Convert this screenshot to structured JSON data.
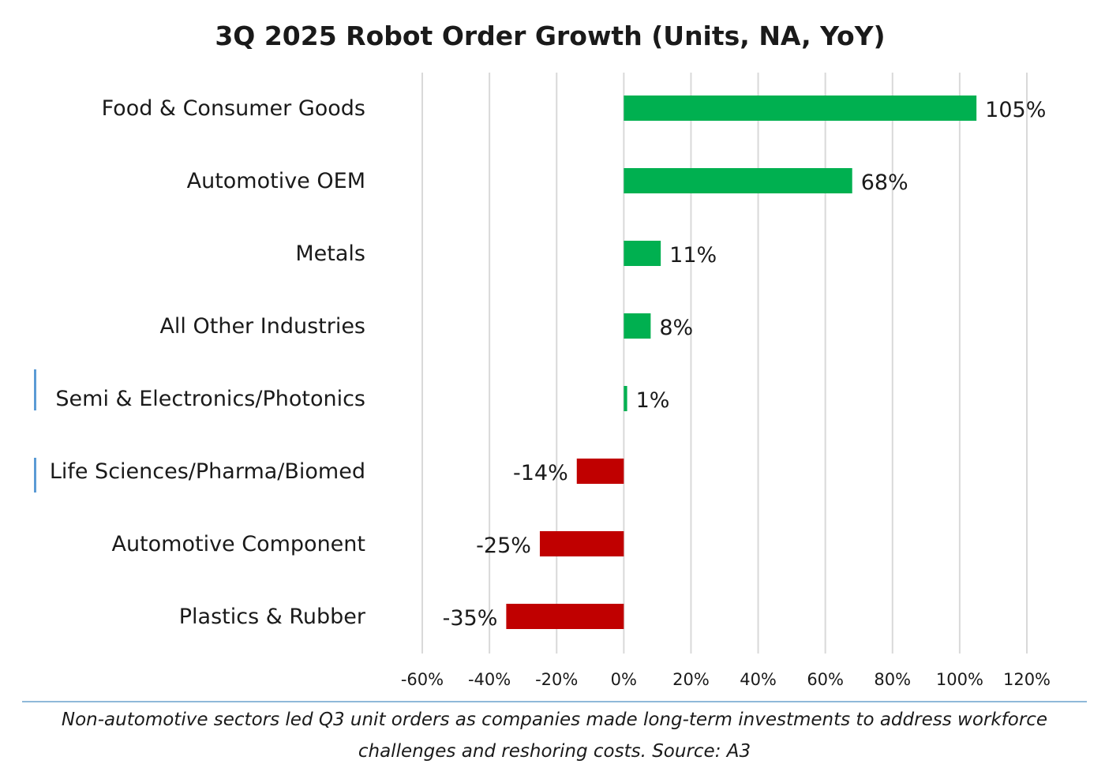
{
  "chart_data": {
    "type": "bar",
    "orientation": "horizontal",
    "title": "3Q 2025 Robot Order Growth (Units, NA, YoY)",
    "categories": [
      "Food & Consumer Goods",
      "Automotive OEM",
      "Metals",
      "All Other Industries",
      "Semi & Electronics/Photonics",
      "Life Sciences/Pharma/Biomed",
      "Automotive Component",
      "Plastics & Rubber"
    ],
    "values": [
      105,
      68,
      11,
      8,
      1,
      -14,
      -25,
      -35
    ],
    "value_labels": [
      "105%",
      "68%",
      "11%",
      "8%",
      "1%",
      "-14%",
      "-25%",
      "-35%"
    ],
    "xlim": [
      -60,
      120
    ],
    "xticks": [
      -60,
      -40,
      -20,
      0,
      20,
      40,
      60,
      80,
      100,
      120
    ],
    "xtick_labels": [
      "-60%",
      "-40%",
      "-20%",
      "0%",
      "20%",
      "40%",
      "60%",
      "80%",
      "100%",
      "120%"
    ],
    "xlabel": "",
    "ylabel": "",
    "grid": "vertical",
    "colors": {
      "positive": "#00b050",
      "negative": "#c00000"
    }
  },
  "caption": "Non-automotive sectors led Q3 unit orders as companies made long-term investments to address workforce challenges and reshoring costs. Source: A3"
}
